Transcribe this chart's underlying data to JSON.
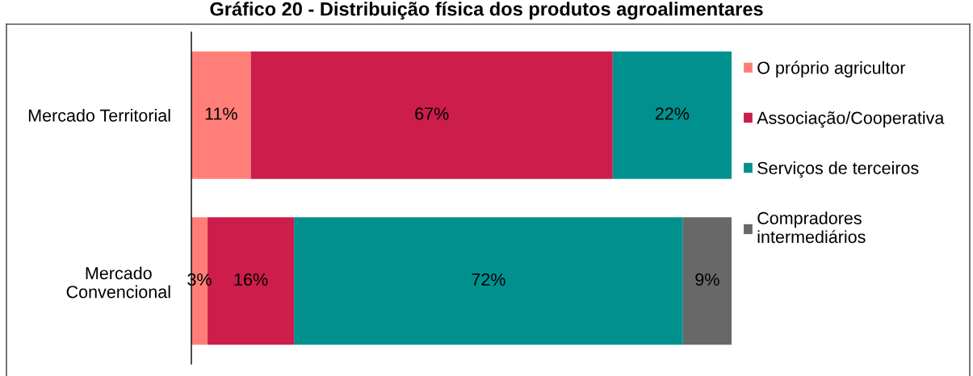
{
  "chart_data": {
    "type": "bar",
    "orientation": "horizontal",
    "stacked": true,
    "title": "Gráfico 20 - Distribuição física dos produtos agroalimentares",
    "categories": [
      "Mercado Territorial",
      "Mercado\nConvencional"
    ],
    "series": [
      {
        "name": "O próprio agricultor",
        "color": "#ff7f78",
        "values": [
          11,
          3
        ],
        "value_labels": [
          "11%",
          "3%"
        ]
      },
      {
        "name": "Associação/Cooperativa",
        "color": "#cc1d4b",
        "values": [
          67,
          16
        ],
        "value_labels": [
          "67%",
          "16%"
        ]
      },
      {
        "name": "Serviços de terceiros",
        "color": "#00918f",
        "values": [
          22,
          72
        ],
        "value_labels": [
          "22%",
          "72%"
        ]
      },
      {
        "name": "Compradores intermediários",
        "color": "#686868",
        "values": [
          null,
          9
        ],
        "value_labels": [
          null,
          "9%"
        ]
      }
    ],
    "legend": "right",
    "grid": false,
    "tick_labels": "y"
  }
}
